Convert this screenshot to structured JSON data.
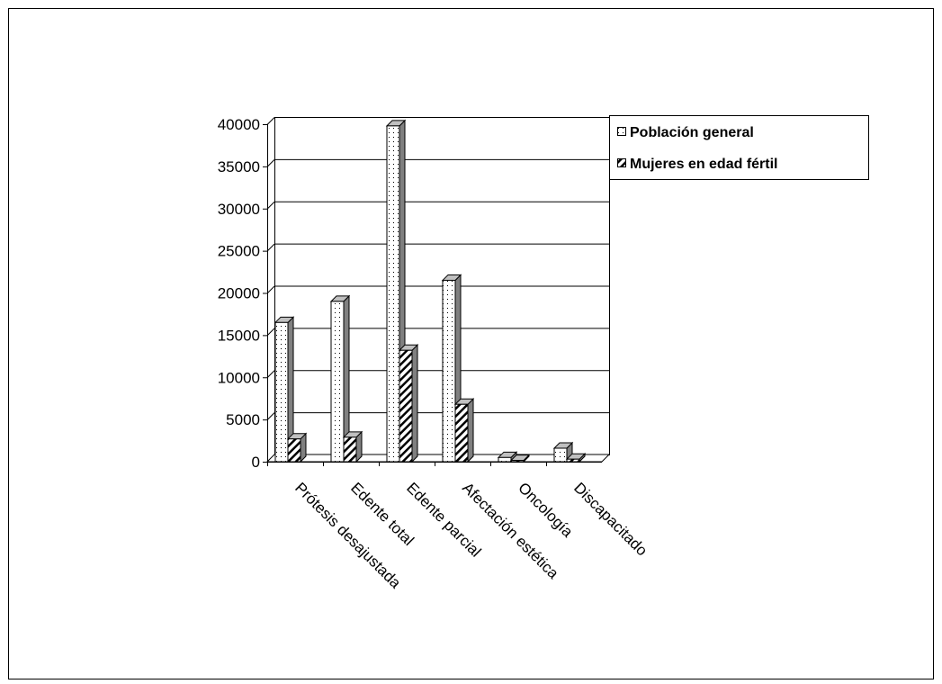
{
  "chart_data": {
    "type": "bar",
    "categories": [
      "Prótesis desajustada",
      "Edente total",
      "Edente parcial",
      "Afectación estética",
      "Oncología",
      "Discapacitado"
    ],
    "series": [
      {
        "name": "Población general",
        "values": [
          16500,
          19000,
          39800,
          21500,
          500,
          1600
        ],
        "pattern": "dots"
      },
      {
        "name": "Mujeres en edad fértil",
        "values": [
          2700,
          2900,
          13200,
          6800,
          150,
          300
        ],
        "pattern": "hatch"
      }
    ],
    "yticks": [
      "0",
      "5000",
      "10000",
      "15000",
      "20000",
      "25000",
      "30000",
      "35000",
      "40000"
    ],
    "ylim": [
      0,
      40000
    ],
    "grid": true,
    "legend_position": "right",
    "colors": {
      "bar_fill": "#ffffff",
      "bar_side": "#808080",
      "bar_top": "#c0c0c0",
      "grid": "#000000"
    }
  }
}
